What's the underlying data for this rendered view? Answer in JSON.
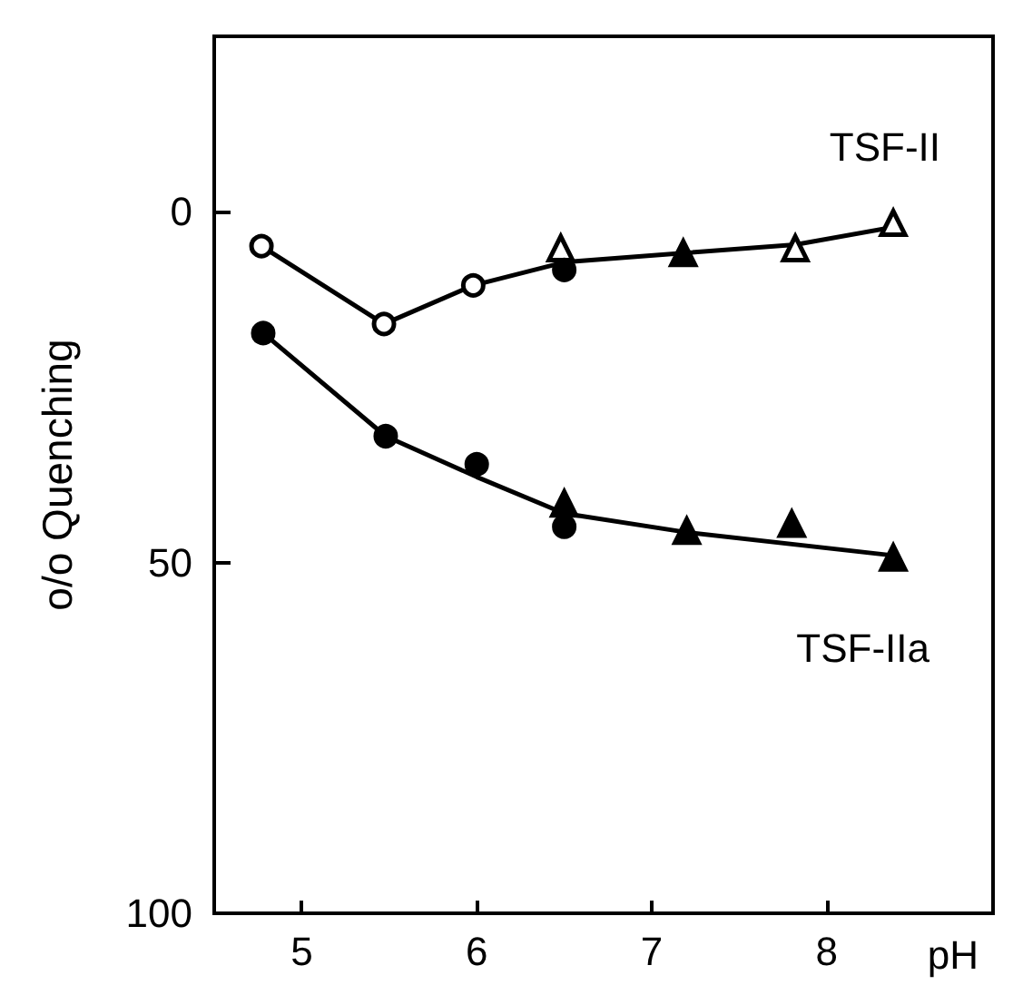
{
  "chart_data": {
    "type": "line",
    "xlabel": "pH",
    "ylabel": "o/o Quenching",
    "xlim": [
      4.5,
      8.95
    ],
    "xticks": [
      5,
      6,
      7,
      8
    ],
    "ylim": [
      100,
      -25
    ],
    "yticks": [
      0,
      50,
      100
    ],
    "grid": false,
    "line_style": "solid",
    "marker": "none",
    "series": [
      {
        "color": "#000000",
        "x": [
          4.77,
          5.47,
          5.98,
          6.5,
          7.18,
          7.82,
          8.38
        ],
        "values": [
          4.9,
          16,
          10.5,
          7.2,
          5.9,
          4.7,
          2.2
        ]
      },
      {
        "color": "#000000",
        "x": [
          4.78,
          5.48,
          6.0,
          6.5,
          7.2,
          8.38
        ],
        "values": [
          17.3,
          32,
          37.8,
          43,
          45.7,
          49
        ]
      },
      {
        "type": "scatter",
        "marker": "circle",
        "color": "#ffffff",
        "x": [
          4.77,
          5.47,
          5.98
        ],
        "values": [
          4.9,
          16,
          10.5
        ]
      },
      {
        "type": "scatter",
        "marker": "triangle",
        "color": "#ffffff",
        "x": [
          6.48,
          7.82,
          8.38
        ],
        "values": [
          5.2,
          5.2,
          1.6
        ]
      },
      {
        "type": "scatter",
        "marker": "circle",
        "color": "#000000",
        "x": [
          6.5,
          4.78,
          5.48,
          6.0,
          6.5
        ],
        "values": [
          8.3,
          17.3,
          32,
          36,
          44.9
        ]
      },
      {
        "type": "scatter",
        "marker": "triangle",
        "color": "#000000",
        "x": [
          7.18,
          6.5,
          7.2,
          7.8,
          8.38
        ],
        "values": [
          5.9,
          41.6,
          45.5,
          44.5,
          49.3
        ]
      }
    ],
    "annotations": [
      "TSF-II",
      "TSF-IIa"
    ]
  }
}
